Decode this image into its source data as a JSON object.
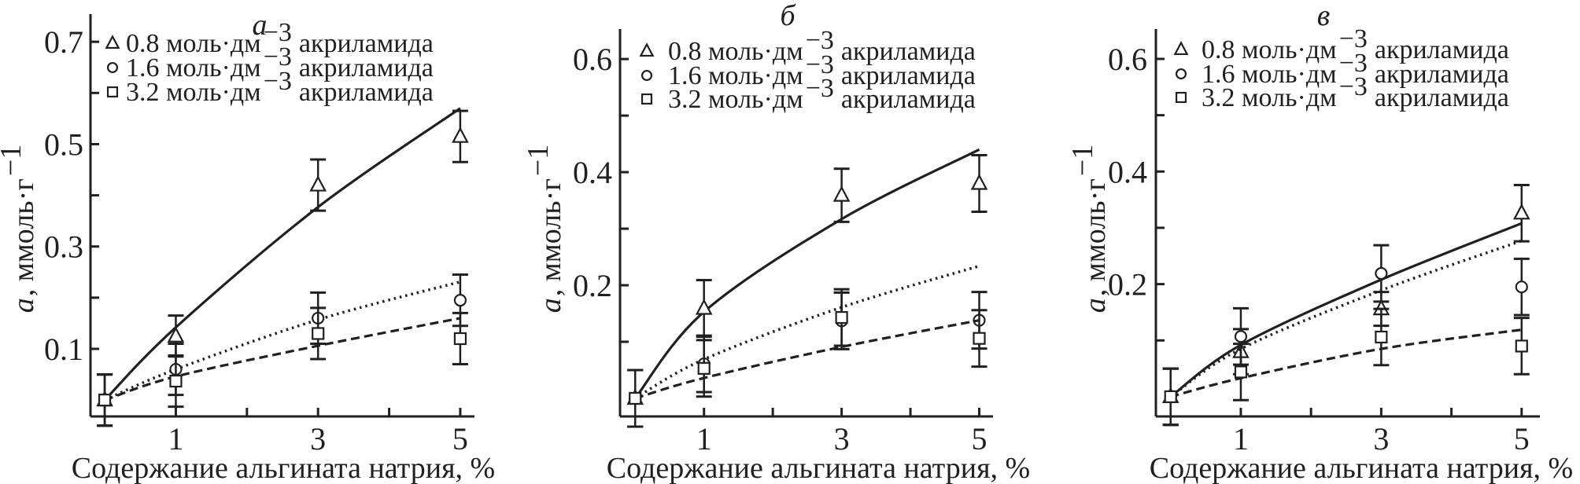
{
  "chart_data": [
    {
      "type": "scatter",
      "title": "а",
      "xlabel": "Содержание альгината натрия, %",
      "ylabel": {
        "var": "a",
        "unit": ", ммоль·г",
        "sup": "−1"
      },
      "xlim": [
        -0.2,
        5.2
      ],
      "ylim": [
        -0.032,
        0.754
      ],
      "xticks": [
        1,
        2,
        3,
        4,
        5
      ],
      "xtick_labels": [
        "1",
        "",
        "3",
        "",
        "5"
      ],
      "yticks": [
        0.1,
        0.2,
        0.3,
        0.4,
        0.5,
        0.6,
        0.7
      ],
      "ytick_labels": [
        "0.1",
        "",
        "0.3",
        "",
        "0.5",
        "",
        "0.7"
      ],
      "grid": false,
      "legend_position": "top-left",
      "series": [
        {
          "name": "0.8 моль·дм−3 акриламида",
          "label_main": "0.8 моль·дм",
          "label_sup": "−3",
          "label_tail": " акриламида",
          "marker": "triangle",
          "fit_style": "solid",
          "x": [
            0,
            1,
            3,
            5
          ],
          "y": [
            0,
            0.125,
            0.42,
            0.515
          ],
          "err": [
            0.05,
            0.04,
            0.05,
            0.05
          ],
          "fit": [
            0,
            0.142,
            0.377,
            0.57
          ]
        },
        {
          "name": "1.6 моль·дм−3 акриламида",
          "label_main": "1.6 моль·дм",
          "label_sup": "−3",
          "label_tail": " акриламида",
          "marker": "circle",
          "fit_style": "dotted",
          "x": [
            0,
            1,
            3,
            5
          ],
          "y": [
            0,
            0.06,
            0.16,
            0.195
          ],
          "err": [
            0.05,
            0.05,
            0.05,
            0.05
          ],
          "fit": [
            0,
            0.06,
            0.157,
            0.231
          ]
        },
        {
          "name": "3.2 моль·дм−3 акриламида",
          "label_main": "3.2 моль·дм",
          "label_sup": "−3",
          "label_tail": " акриламида",
          "marker": "square",
          "fit_style": "dashed",
          "x": [
            0,
            1,
            3,
            5
          ],
          "y": [
            0,
            0.037,
            0.13,
            0.12
          ],
          "err": [
            0.05,
            0.05,
            0.05,
            0.05
          ],
          "fit": [
            0,
            0.046,
            0.106,
            0.16
          ]
        }
      ]
    },
    {
      "type": "scatter",
      "title": "б",
      "xlabel": "Содержание альгината натрия, %",
      "ylabel": {
        "var": "a",
        "unit": ", ммоль·г",
        "sup": "−1"
      },
      "xlim": [
        -0.22,
        5.2
      ],
      "ylim": [
        -0.032,
        0.653
      ],
      "xticks": [
        1,
        2,
        3,
        4,
        5
      ],
      "xtick_labels": [
        "1",
        "",
        "3",
        "",
        "5"
      ],
      "yticks": [
        0.1,
        0.2,
        0.3,
        0.4,
        0.5,
        0.6
      ],
      "ytick_labels": [
        "",
        "0.2",
        "",
        "0.4",
        "",
        "0.6"
      ],
      "grid": false,
      "legend_position": "top-left",
      "series": [
        {
          "name": "0.8 моль·дм−3 акриламида",
          "label_main": "0.8 моль·дм",
          "label_sup": "−3",
          "label_tail": " акриламида",
          "marker": "triangle",
          "fit_style": "solid",
          "x": [
            0,
            1,
            3,
            5
          ],
          "y": [
            0,
            0.159,
            0.359,
            0.38
          ],
          "err": [
            0.05,
            0.05,
            0.047,
            0.05
          ],
          "fit": [
            0,
            0.153,
            0.317,
            0.44
          ]
        },
        {
          "name": "1.6 моль·дм−3 акриламида",
          "label_main": "1.6 моль·дм",
          "label_sup": "−3",
          "label_tail": " акриламида",
          "marker": "circle",
          "fit_style": "dotted",
          "x": [
            0,
            1,
            3,
            5
          ],
          "y": [
            0,
            0.061,
            0.137,
            0.138
          ],
          "err": [
            0.05,
            0.05,
            0.05,
            0.05
          ],
          "fit": [
            0,
            0.069,
            0.161,
            0.234
          ]
        },
        {
          "name": "3.2 моль·дм−3 акриламида",
          "label_main": "3.2 моль·дм",
          "label_sup": "−3",
          "label_tail": " акриламида",
          "marker": "square",
          "fit_style": "dashed",
          "x": [
            0,
            1,
            3,
            5
          ],
          "y": [
            0,
            0.053,
            0.143,
            0.106
          ],
          "err": [
            0.05,
            0.05,
            0.05,
            0.05
          ],
          "fit": [
            0,
            0.036,
            0.091,
            0.138
          ]
        }
      ]
    },
    {
      "type": "scatter",
      "title": "в",
      "xlabel": "Содержание альгината натрия, %",
      "ylabel": {
        "var": "a",
        "unit": ", ммоль·г",
        "sup": "−1"
      },
      "xlim": [
        -0.21,
        5.26
      ],
      "ylim": [
        -0.035,
        0.653
      ],
      "xticks": [
        1,
        2,
        3,
        4,
        5
      ],
      "xtick_labels": [
        "1",
        "",
        "3",
        "",
        "5"
      ],
      "yticks": [
        0.1,
        0.2,
        0.3,
        0.4,
        0.5,
        0.6
      ],
      "ytick_labels": [
        "",
        "0.2",
        "",
        "0.4",
        "",
        "0.6"
      ],
      "grid": false,
      "legend_position": "top-left",
      "series": [
        {
          "name": "0.8 моль·дм−3 акриламида",
          "label_main": "0.8 моль·дм",
          "label_sup": "−3",
          "label_tail": " акриламида",
          "marker": "triangle",
          "fit_style": "solid",
          "x": [
            0,
            1,
            3,
            5
          ],
          "y": [
            0,
            0.08,
            0.156,
            0.326
          ],
          "err": [
            0.05,
            0.04,
            0.03,
            0.05
          ],
          "fit": [
            0,
            0.092,
            0.208,
            0.308
          ]
        },
        {
          "name": "1.6 моль·дм−3 акриламида",
          "label_main": "1.6 моль·дм",
          "label_sup": "−3",
          "label_tail": " акриламида",
          "marker": "circle",
          "fit_style": "dotted",
          "x": [
            0,
            1,
            3,
            5
          ],
          "y": [
            0,
            0.107,
            0.219,
            0.195
          ],
          "err": [
            0.05,
            0.05,
            0.05,
            0.05
          ],
          "fit": [
            0,
            0.085,
            0.189,
            0.277
          ]
        },
        {
          "name": "3.2 моль·дм−3 акриламида",
          "label_main": "3.2 моль·дм",
          "label_sup": "−3",
          "label_tail": " акриламида",
          "marker": "square",
          "fit_style": "dashed",
          "x": [
            0,
            1,
            3,
            5
          ],
          "y": [
            0,
            0.044,
            0.106,
            0.09
          ],
          "err": [
            0.05,
            0.05,
            0.05,
            0.05
          ],
          "fit": [
            0,
            0.033,
            0.085,
            0.119
          ]
        }
      ]
    }
  ],
  "colors": {
    "ink": "#231f20",
    "background": "#ffffff"
  }
}
